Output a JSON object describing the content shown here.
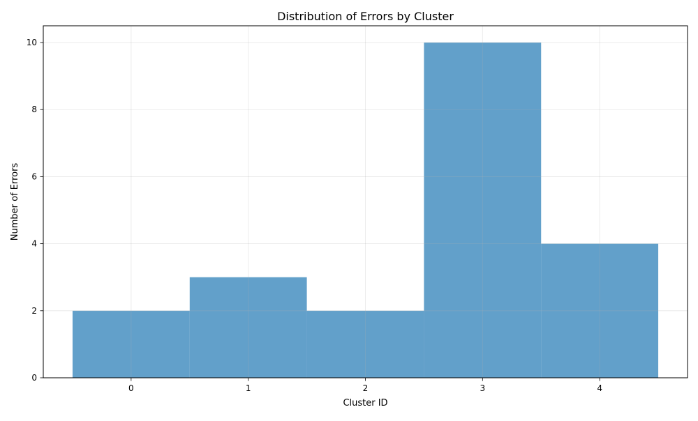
{
  "chart_data": {
    "type": "bar",
    "title": "Distribution of Errors by Cluster",
    "xlabel": "Cluster ID",
    "ylabel": "Number of Errors",
    "categories": [
      "0",
      "1",
      "2",
      "3",
      "4"
    ],
    "x": [
      0,
      1,
      2,
      3,
      4
    ],
    "values": [
      2,
      3,
      2,
      10,
      4
    ],
    "bar_width": 1.0,
    "xlim": [
      -0.75,
      4.75
    ],
    "ylim": [
      0,
      10.5
    ],
    "x_ticks": [
      0,
      1,
      2,
      3,
      4
    ],
    "x_tick_labels": [
      "0",
      "1",
      "2",
      "3",
      "4"
    ],
    "y_ticks": [
      0,
      2,
      4,
      6,
      8,
      10
    ],
    "y_tick_labels": [
      "0",
      "2",
      "4",
      "6",
      "8",
      "10"
    ],
    "grid": true,
    "legend": "none",
    "colors": {
      "bar": "#1f77b4",
      "bar_alpha": 0.7,
      "grid": "#b0b0b0",
      "axis": "#000000"
    }
  }
}
